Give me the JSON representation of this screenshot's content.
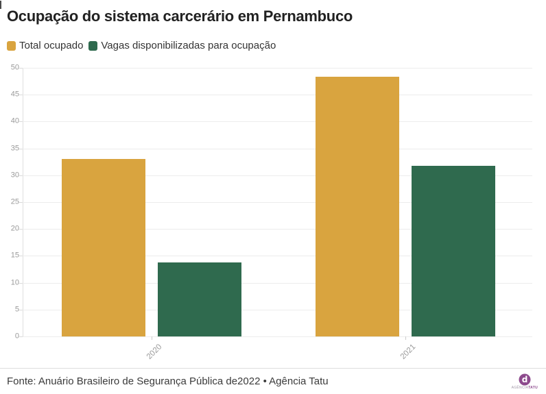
{
  "title": "Ocupação do sistema carcerário em Pernambuco",
  "legend": [
    {
      "label": "Total ocupado",
      "color": "#d9a43f"
    },
    {
      "label": "Vagas disponibilizadas para ocupação",
      "color": "#2f6a4e"
    }
  ],
  "chart_data": {
    "type": "bar",
    "title": "Ocupação do sistema carcerário em Pernambuco",
    "categories": [
      "2020",
      "2021"
    ],
    "series": [
      {
        "name": "Total ocupado",
        "color": "#d9a43f",
        "values": [
          33,
          48.3
        ]
      },
      {
        "name": "Vagas disponibilizadas para ocupação",
        "color": "#2f6a4e",
        "values": [
          13.8,
          31.7
        ]
      }
    ],
    "xlabel": "",
    "ylabel": "",
    "ylim": [
      0,
      50
    ],
    "ytick_step": 5,
    "grid": true,
    "legend_position": "top-left",
    "xtick_rotation": -45
  },
  "footer": {
    "source": "Fonte: Anuário Brasileiro de Segurança Pública de2022 • Agência Tatu",
    "logo_agency": "AGÊNCIA",
    "logo_name": "TATU",
    "logo_glyph": "d",
    "logo_color": "#8d4a8d"
  }
}
